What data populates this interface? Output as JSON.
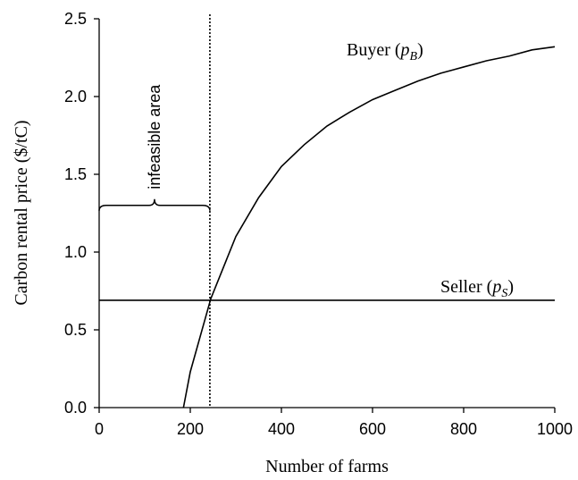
{
  "chart_data": {
    "type": "line",
    "xlabel": "Number of farms",
    "ylabel": "Carbon rental price ($/tC)",
    "xlim": [
      0,
      1000
    ],
    "xticks": [
      0,
      200,
      400,
      600,
      800,
      1000
    ],
    "ylim": [
      0,
      2.5
    ],
    "yticks": [
      {
        "value": 0,
        "label": "0.0"
      },
      {
        "value": 0.5,
        "label": "0.5"
      },
      {
        "value": 1,
        "label": "1.0"
      },
      {
        "value": 1.5,
        "label": "1.5"
      },
      {
        "value": 2,
        "label": "2.0"
      },
      {
        "value": 2.5,
        "label": "2.5"
      }
    ],
    "series": [
      {
        "label_parts": [
          "Buyer (",
          "p",
          "B",
          ")"
        ],
        "color": "#000000",
        "x": [
          185,
          200,
          245,
          300,
          350,
          400,
          450,
          500,
          550,
          600,
          650,
          700,
          750,
          800,
          850,
          900,
          950,
          1000
        ],
        "values": [
          0,
          0.23,
          0.7,
          1.1,
          1.35,
          1.55,
          1.69,
          1.81,
          1.9,
          1.98,
          2.04,
          2.1,
          2.15,
          2.19,
          2.23,
          2.26,
          2.3,
          2.32
        ]
      },
      {
        "label_parts": [
          "Seller (",
          "p",
          "S",
          ")"
        ],
        "color": "#000000",
        "x": [
          0,
          1000
        ],
        "values": [
          0.69,
          0.69
        ]
      }
    ],
    "threshold": {
      "x": 243,
      "brace_y": 1.3,
      "label": "infeasible area"
    }
  }
}
